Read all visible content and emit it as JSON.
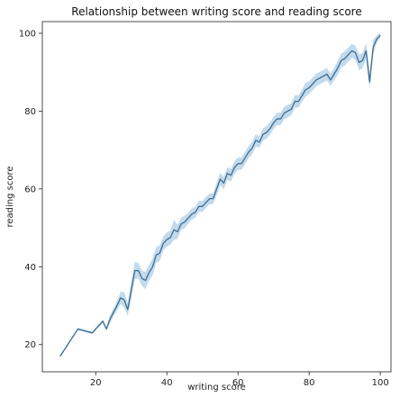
{
  "chart_data": {
    "type": "line",
    "title": "Relationship between writing score and reading score",
    "xlabel": "writing score",
    "ylabel": "reading score",
    "xlim": [
      5,
      103
    ],
    "ylim": [
      13,
      103
    ],
    "xticks": [
      20,
      40,
      60,
      80,
      100
    ],
    "yticks": [
      20,
      40,
      60,
      80,
      100
    ],
    "grid": false,
    "colors": {
      "line": "#3b6e94",
      "band": "#b9d3ea"
    },
    "series": [
      {
        "x": [
          10,
          15,
          19,
          22,
          23,
          24,
          26,
          27,
          28,
          29,
          30,
          31,
          32,
          33,
          34,
          35,
          36,
          37,
          38,
          39,
          40,
          41,
          42,
          43,
          44,
          45,
          46,
          47,
          48,
          49,
          50,
          51,
          52,
          53,
          54,
          55,
          56,
          57,
          58,
          59,
          60,
          61,
          62,
          63,
          64,
          65,
          66,
          67,
          68,
          69,
          70,
          71,
          72,
          73,
          74,
          75,
          76,
          77,
          78,
          79,
          80,
          81,
          82,
          83,
          84,
          85,
          86,
          87,
          88,
          89,
          90,
          91,
          92,
          93,
          94,
          95,
          96,
          97,
          98,
          99,
          100
        ],
        "y": [
          17,
          24,
          23,
          26,
          24,
          26.5,
          30,
          32,
          31.5,
          29,
          34,
          39,
          39,
          37,
          36.5,
          38.5,
          40,
          43,
          43.5,
          46,
          47,
          47.5,
          49.5,
          49,
          51,
          51.5,
          52.5,
          53.5,
          54,
          55.5,
          55.5,
          56.5,
          57.5,
          57.5,
          60,
          62.5,
          61.5,
          64,
          63.5,
          65.5,
          66.5,
          66.5,
          68,
          69.5,
          70.5,
          72.5,
          72,
          74,
          74.5,
          75.5,
          77,
          78,
          78,
          79.5,
          80,
          80.5,
          82.5,
          82.5,
          84,
          85.5,
          86,
          87,
          88,
          88.5,
          89,
          89.5,
          88,
          89.5,
          91,
          93,
          93.5,
          94.5,
          95.5,
          95,
          92.5,
          93,
          95.5,
          87.5,
          96.5,
          98.5,
          99.5
        ],
        "ci": [
          0.3,
          0.3,
          0.3,
          0.4,
          0.4,
          1.0,
          1.2,
          1.6,
          2.0,
          1.6,
          2.2,
          2.2,
          2.0,
          2.0,
          2.2,
          2.0,
          2.2,
          2.0,
          2.0,
          1.8,
          1.8,
          1.8,
          2.6,
          1.8,
          1.6,
          1.6,
          1.4,
          1.4,
          1.4,
          1.4,
          1.4,
          1.4,
          1.4,
          1.4,
          1.6,
          1.6,
          1.6,
          1.6,
          1.6,
          1.6,
          1.6,
          1.6,
          1.6,
          1.6,
          1.6,
          1.6,
          1.4,
          1.6,
          1.6,
          1.6,
          1.6,
          1.6,
          1.6,
          1.6,
          1.6,
          1.6,
          1.6,
          1.6,
          1.6,
          1.8,
          1.6,
          1.6,
          1.6,
          1.6,
          1.6,
          1.6,
          1.6,
          1.6,
          1.8,
          1.8,
          1.8,
          1.8,
          1.8,
          1.8,
          2.0,
          2.0,
          2.0,
          2.0,
          1.8,
          1.0,
          0.6
        ]
      }
    ]
  }
}
